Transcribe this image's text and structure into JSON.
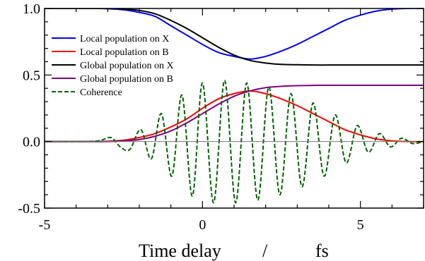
{
  "chart_data": {
    "type": "line",
    "xlabel_parts": [
      "Time delay",
      "/",
      "fs"
    ],
    "xlim": [
      -5,
      7
    ],
    "ylim": [
      -0.5,
      1.0
    ],
    "x_ticks": [
      -5,
      0,
      5
    ],
    "x_tick_labels": [
      "-5",
      "0",
      "5"
    ],
    "y_ticks": [
      -0.5,
      0.0,
      0.5,
      1.0
    ],
    "y_tick_labels": [
      "-0.5",
      "0.0",
      "0.5",
      "1.0"
    ],
    "zero_line": true,
    "grid": false,
    "legend_position": "upper-left",
    "x": [
      -5,
      -4.5,
      -4,
      -3.5,
      -3,
      -2.5,
      -2,
      -1.5,
      -1,
      -0.5,
      0,
      0.5,
      1,
      1.5,
      2,
      2.5,
      3,
      3.5,
      4,
      4.5,
      5,
      5.5,
      6,
      6.5,
      7
    ],
    "series": [
      {
        "name": "Local population on X",
        "color": "#0000ff",
        "dash": "solid",
        "values": [
          1.0,
          1.0,
          1.0,
          1.0,
          0.998,
          0.99,
          0.97,
          0.94,
          0.87,
          0.8,
          0.73,
          0.67,
          0.64,
          0.62,
          0.64,
          0.68,
          0.73,
          0.79,
          0.85,
          0.91,
          0.95,
          0.98,
          0.995,
          1.0,
          1.0
        ]
      },
      {
        "name": "Local population on B",
        "color": "#ff0000",
        "dash": "solid",
        "values": [
          0.0,
          0.0,
          0.0,
          0.0,
          0.002,
          0.01,
          0.03,
          0.06,
          0.11,
          0.17,
          0.25,
          0.32,
          0.36,
          0.38,
          0.36,
          0.32,
          0.27,
          0.21,
          0.15,
          0.09,
          0.05,
          0.02,
          0.005,
          0.0,
          0.0
        ]
      },
      {
        "name": "Global population on X",
        "color": "#000000",
        "dash": "solid",
        "values": [
          1.0,
          1.0,
          1.0,
          1.0,
          1.0,
          0.995,
          0.985,
          0.96,
          0.91,
          0.85,
          0.78,
          0.71,
          0.65,
          0.61,
          0.59,
          0.58,
          0.577,
          0.575,
          0.575,
          0.575,
          0.575,
          0.575,
          0.575,
          0.575,
          0.575
        ]
      },
      {
        "name": "Global population on B",
        "color": "#800080",
        "dash": "solid",
        "values": [
          0.0,
          0.0,
          0.0,
          0.0,
          0.0,
          0.005,
          0.015,
          0.04,
          0.08,
          0.14,
          0.21,
          0.28,
          0.34,
          0.38,
          0.405,
          0.415,
          0.42,
          0.422,
          0.423,
          0.423,
          0.423,
          0.423,
          0.423,
          0.423,
          0.423
        ]
      },
      {
        "name": "Coherence",
        "color": "#006400",
        "dash": "dashed",
        "oscillating": true,
        "x": [
          -5.0,
          -4.1,
          -3.3,
          -2.9,
          -2.6,
          -2.3,
          -1.95,
          -1.62,
          -1.3,
          -0.97,
          -0.65,
          -0.32,
          0.0,
          0.35,
          0.7,
          1.05,
          1.4,
          1.75,
          2.1,
          2.45,
          2.8,
          3.15,
          3.5,
          3.85,
          4.2,
          4.55,
          4.9,
          5.25,
          5.6,
          5.95,
          6.3,
          6.65,
          7.0
        ],
        "values": [
          0.0,
          0.0,
          0.005,
          0.03,
          -0.04,
          -0.06,
          0.09,
          -0.13,
          0.21,
          -0.26,
          0.35,
          -0.41,
          0.44,
          -0.46,
          0.46,
          -0.46,
          0.44,
          -0.44,
          0.41,
          -0.4,
          0.36,
          -0.34,
          0.29,
          -0.26,
          0.2,
          -0.16,
          0.12,
          -0.08,
          0.06,
          -0.04,
          0.025,
          -0.015,
          0.0
        ]
      }
    ]
  }
}
